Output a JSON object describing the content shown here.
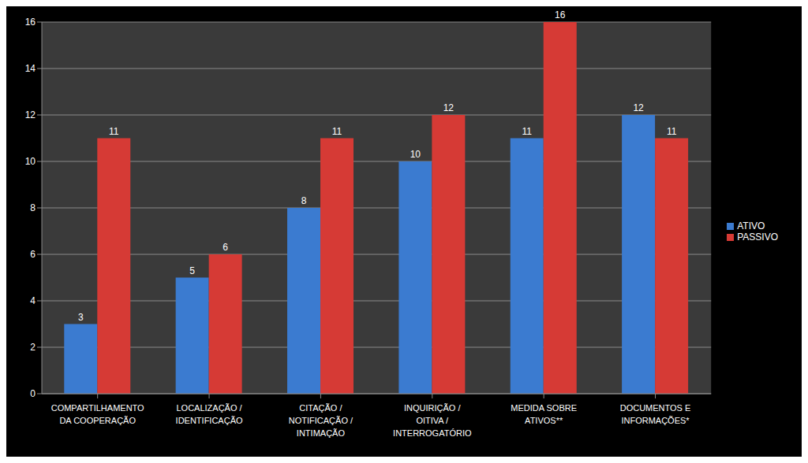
{
  "chart_data": {
    "type": "bar",
    "categories": [
      "COMPARTILHAMENTO DA COOPERAÇÃO",
      "LOCALIZAÇÃO / IDENTIFICAÇÃO",
      "CITAÇÃO / NOTIFICAÇÃO / INTIMAÇÃO",
      "INQUIRIÇÃO / OITIVA / INTERROGATÓRIO",
      "MEDIDA SOBRE ATIVOS**",
      "DOCUMENTOS E INFORMAÇÕES*"
    ],
    "series": [
      {
        "name": "ATIVO",
        "color": "#3b7bd0",
        "values": [
          3,
          5,
          8,
          10,
          11,
          12
        ]
      },
      {
        "name": "PASSIVO",
        "color": "#d63a35",
        "values": [
          11,
          6,
          11,
          12,
          16,
          11
        ]
      }
    ],
    "ylim": [
      0,
      16
    ],
    "yticks": [
      0,
      2,
      4,
      6,
      8,
      10,
      12,
      14,
      16
    ],
    "grid": true,
    "legend": "right",
    "data_labels": true
  }
}
